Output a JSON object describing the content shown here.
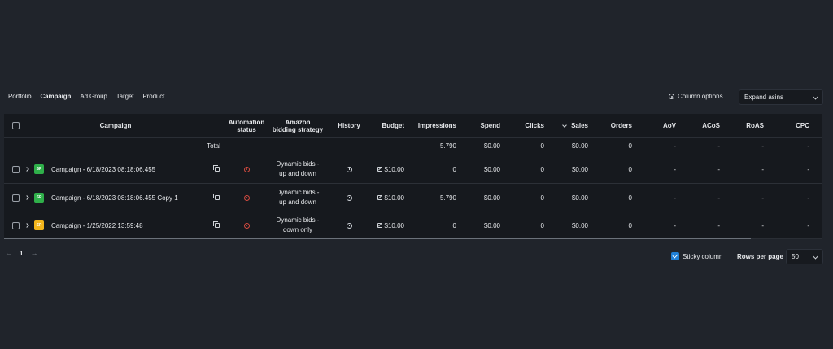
{
  "tabs": [
    "Portfolio",
    "Campaign",
    "Ad Group",
    "Target",
    "Product"
  ],
  "column_options_label": "Column options",
  "expand_select": {
    "value": "Expand asins"
  },
  "columns": {
    "campaign": "Campaign",
    "automation_1": "Automation",
    "automation_2": "status",
    "amazon_1": "Amazon",
    "amazon_2": "bidding strategy",
    "history": "History",
    "budget": "Budget",
    "impressions": "Impressions",
    "spend": "Spend",
    "clicks": "Clicks",
    "sales": "Sales",
    "orders": "Orders",
    "aov": "AoV",
    "acos": "ACoS",
    "roas": "RoAS",
    "cpc": "CPC"
  },
  "total": {
    "label": "Total",
    "impressions": "5.790",
    "spend": "$0.00",
    "clicks": "0",
    "sales": "$0.00",
    "orders": "0",
    "aov": "-",
    "acos": "-",
    "roas": "-",
    "cpc": "-"
  },
  "rows": [
    {
      "badge": "SP",
      "badge_color": "#2fb04a",
      "name": "Campaign - 6/18/2023 08:18:06.455",
      "strategy_1": "Dynamic bids -",
      "strategy_2": "up and down",
      "budget": "$10.00",
      "impressions": "0",
      "spend": "$0.00",
      "clicks": "0",
      "sales": "$0.00",
      "orders": "0",
      "aov": "-",
      "acos": "-",
      "roas": "-",
      "cpc": "-"
    },
    {
      "badge": "SP",
      "badge_color": "#2fb04a",
      "name": "Campaign - 6/18/2023 08:18:06.455 Copy 1",
      "strategy_1": "Dynamic bids -",
      "strategy_2": "up and down",
      "budget": "$10.00",
      "impressions": "5.790",
      "spend": "$0.00",
      "clicks": "0",
      "sales": "$0.00",
      "orders": "0",
      "aov": "-",
      "acos": "-",
      "roas": "-",
      "cpc": "-"
    },
    {
      "badge": "SP",
      "badge_color": "#f2b51c",
      "name": "Campaign - 1/25/2022 13:59:48",
      "strategy_1": "Dynamic bids -",
      "strategy_2": "down only",
      "budget": "$10.00",
      "impressions": "0",
      "spend": "$0.00",
      "clicks": "0",
      "sales": "$0.00",
      "orders": "0",
      "aov": "-",
      "acos": "-",
      "roas": "-",
      "cpc": "-"
    }
  ],
  "pagination": {
    "prev": "←",
    "page": "1",
    "next": "→"
  },
  "sticky_label": "Sticky column",
  "rows_per_page_label": "Rows per page",
  "rows_per_page": {
    "value": "50"
  }
}
